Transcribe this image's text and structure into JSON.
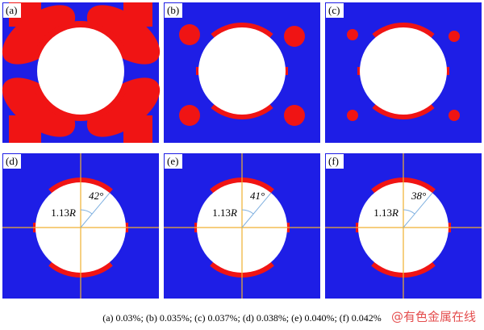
{
  "panels": [
    {
      "label": "(a)"
    },
    {
      "label": "(b)"
    },
    {
      "label": "(c)"
    },
    {
      "label": "(d)",
      "radius_number": "1.13",
      "radius_symbol": "R",
      "angle_label": "42°"
    },
    {
      "label": "(e)",
      "radius_number": "1.13",
      "radius_symbol": "R",
      "angle_label": "41°"
    },
    {
      "label": "(f)",
      "radius_number": "1.13",
      "radius_symbol": "R",
      "angle_label": "38°"
    }
  ],
  "caption": "(a) 0.03%; (b) 0.035%; (c) 0.037%; (d) 0.038%; (e) 0.040%; (f) 0.042%",
  "watermark": "@有色金属在线"
}
